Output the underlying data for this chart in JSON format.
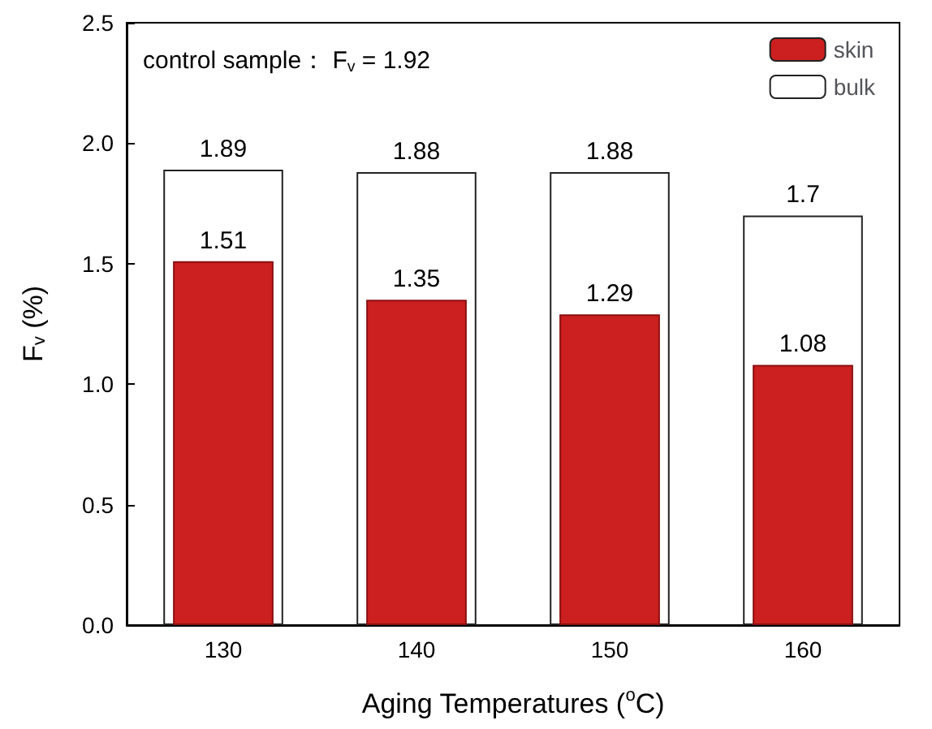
{
  "chart_data": {
    "type": "bar",
    "categories": [
      "130",
      "140",
      "150",
      "160"
    ],
    "series": [
      {
        "name": "skin",
        "color": "#cc1f1f",
        "values": [
          1.51,
          1.35,
          1.29,
          1.08
        ]
      },
      {
        "name": "bulk",
        "color": "#ffffff",
        "values": [
          1.89,
          1.88,
          1.88,
          1.7
        ]
      }
    ],
    "xlabel": "Aging Temperatures ($^{o}$C)",
    "ylabel": "F$_{v}$ (%)",
    "annotations": [
      "control sample： F$_{v}$ = 1.92"
    ],
    "ylim": [
      0,
      2.5
    ],
    "yticks": [
      {
        "value": 0,
        "label": "0.0"
      },
      {
        "value": 0.5,
        "label": "0.5"
      },
      {
        "value": 1,
        "label": "1.0"
      },
      {
        "value": 1.5,
        "label": "1.5"
      },
      {
        "value": 2,
        "label": "2.0"
      },
      {
        "value": 2.5,
        "label": "2.5"
      }
    ],
    "data_labels": true,
    "legend": "top right",
    "grid": false
  }
}
